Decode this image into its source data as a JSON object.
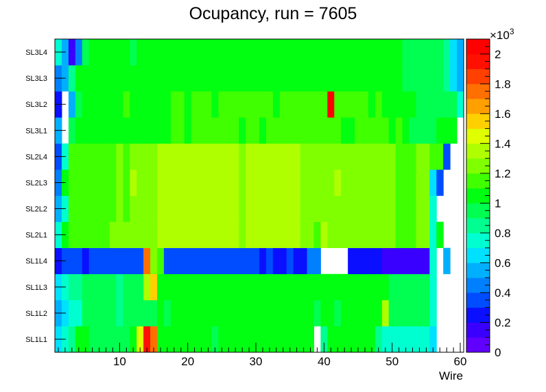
{
  "chart_data": {
    "type": "heatmap",
    "title": "Ocupancy, run = 7605",
    "xlabel": "Wire",
    "ylabel": "",
    "xlim": [
      0.5,
      60.5
    ],
    "x_ticks": [
      10,
      20,
      30,
      40,
      50,
      60
    ],
    "x_tick_labels": [
      "10",
      "20",
      "30",
      "40",
      "50",
      "60"
    ],
    "rows_bottom_to_top": [
      "SL1L1",
      "SL1L2",
      "SL1L3",
      "SL1L4",
      "SL2L1",
      "SL2L2",
      "SL2L3",
      "SL2L4",
      "SL3L1",
      "SL3L2",
      "SL3L3",
      "SL3L4"
    ],
    "z_range": [
      0,
      2100
    ],
    "z_exponent_label": "×10",
    "z_exponent_power": "3",
    "colorbar_ticks": [
      0,
      200,
      400,
      600,
      800,
      1000,
      1200,
      1400,
      1600,
      1800,
      2000
    ],
    "colorbar_tick_labels": [
      "0",
      "0.2",
      "0.4",
      "0.6",
      "0.8",
      "1",
      "1.2",
      "1.4",
      "1.6",
      "1.8",
      "2"
    ],
    "palette": [
      "#6000ff",
      "#3a00ff",
      "#0a10ff",
      "#004cff",
      "#0080ff",
      "#00b0ff",
      "#00e0ff",
      "#00ffd0",
      "#00ff90",
      "#00ff50",
      "#00ff10",
      "#40ff00",
      "#80ff00",
      "#b0ff00",
      "#e0ff00",
      "#ffd000",
      "#ffa000",
      "#ff7000",
      "#ff4000",
      "#ff1000",
      "#ff0000"
    ],
    "values": [
      [
        620,
        740,
        800,
        1000,
        1000,
        900,
        900,
        900,
        900,
        900,
        900,
        1000,
        1400,
        1950,
        1700,
        1000,
        1000,
        1000,
        1000,
        1000,
        1000,
        1000,
        1000,
        900,
        1000,
        1000,
        1000,
        1000,
        1000,
        1000,
        1000,
        1000,
        1000,
        1000,
        1000,
        1000,
        1000,
        1000,
        0,
        800,
        1000,
        1000,
        1000,
        1000,
        1000,
        1000,
        1000,
        800,
        780,
        780,
        780,
        780,
        780,
        780,
        780,
        620,
        0,
        0,
        0,
        0
      ],
      [
        500,
        600,
        740,
        740,
        900,
        900,
        900,
        900,
        900,
        800,
        900,
        900,
        900,
        900,
        900,
        1000,
        900,
        1000,
        1000,
        1000,
        1000,
        1000,
        1000,
        1000,
        1000,
        1000,
        1000,
        1000,
        1000,
        1000,
        1000,
        1000,
        1000,
        1000,
        1000,
        1000,
        1000,
        1000,
        900,
        1000,
        1000,
        900,
        1000,
        1000,
        1000,
        1000,
        1000,
        1000,
        1300,
        900,
        900,
        900,
        900,
        900,
        900,
        700,
        0,
        0,
        0,
        0
      ],
      [
        600,
        740,
        800,
        800,
        900,
        900,
        900,
        900,
        900,
        800,
        900,
        900,
        900,
        1300,
        1500,
        1000,
        1000,
        1000,
        1000,
        1000,
        1000,
        1000,
        1000,
        1000,
        1000,
        1000,
        1000,
        1000,
        1000,
        1000,
        1000,
        1000,
        1000,
        1000,
        1000,
        1000,
        1000,
        1000,
        1000,
        1000,
        1000,
        1000,
        1000,
        1000,
        1000,
        1000,
        1000,
        1000,
        1000,
        900,
        900,
        900,
        900,
        900,
        900,
        750,
        0,
        0,
        0,
        0
      ],
      [
        200,
        330,
        330,
        330,
        270,
        330,
        330,
        330,
        330,
        330,
        330,
        330,
        360,
        1750,
        1200,
        1150,
        380,
        380,
        380,
        380,
        380,
        380,
        380,
        380,
        380,
        380,
        380,
        380,
        380,
        380,
        270,
        380,
        270,
        270,
        380,
        270,
        270,
        400,
        450,
        0,
        0,
        0,
        0,
        270,
        270,
        270,
        270,
        270,
        140,
        140,
        140,
        140,
        140,
        140,
        140,
        780,
        0,
        520,
        0,
        0
      ],
      [
        730,
        1000,
        1150,
        1150,
        1150,
        1150,
        1150,
        1150,
        1200,
        1200,
        1200,
        1200,
        1200,
        1200,
        1200,
        1300,
        1300,
        1300,
        1300,
        1350,
        1300,
        1300,
        1300,
        1300,
        1300,
        1300,
        1300,
        1200,
        1300,
        1300,
        1300,
        1300,
        1300,
        1300,
        1300,
        1300,
        1200,
        1200,
        1100,
        1300,
        1200,
        1200,
        1200,
        1200,
        1200,
        1200,
        1200,
        1200,
        1200,
        1200,
        1100,
        1100,
        1100,
        1200,
        1200,
        750,
        1000,
        0,
        0,
        0
      ],
      [
        500,
        730,
        1100,
        1150,
        1150,
        1150,
        1150,
        1150,
        1150,
        1200,
        1150,
        1200,
        1200,
        1200,
        1200,
        1300,
        1300,
        1300,
        1300,
        1300,
        1300,
        1300,
        1300,
        1300,
        1300,
        1300,
        1300,
        1200,
        1300,
        1300,
        1300,
        1300,
        1300,
        1300,
        1300,
        1300,
        1200,
        1200,
        1200,
        1200,
        1200,
        1200,
        1200,
        1200,
        1200,
        1200,
        1200,
        1200,
        1200,
        1200,
        1100,
        1100,
        1100,
        1200,
        1200,
        700,
        0,
        0,
        0,
        0
      ],
      [
        400,
        1050,
        1100,
        1150,
        1150,
        1150,
        1150,
        1150,
        1150,
        1200,
        1150,
        1300,
        1200,
        1200,
        1200,
        1300,
        1300,
        1300,
        1300,
        1300,
        1300,
        1300,
        1300,
        1300,
        1300,
        1300,
        1300,
        1200,
        1300,
        1300,
        1300,
        1300,
        1300,
        1300,
        1300,
        1300,
        1200,
        1200,
        1200,
        1200,
        1200,
        1300,
        1200,
        1200,
        1200,
        1200,
        1200,
        1200,
        1200,
        1200,
        1100,
        1100,
        1100,
        1200,
        1200,
        600,
        300,
        0,
        0,
        0
      ],
      [
        300,
        750,
        1100,
        1150,
        1150,
        1150,
        1150,
        1150,
        1150,
        1200,
        1150,
        1200,
        1200,
        1200,
        1200,
        1300,
        1300,
        1300,
        1300,
        1300,
        1300,
        1300,
        1300,
        1300,
        1300,
        1300,
        1300,
        1200,
        1300,
        1300,
        1300,
        1300,
        1300,
        1300,
        1300,
        1300,
        1200,
        1200,
        1200,
        1200,
        1200,
        1200,
        1200,
        1200,
        1200,
        1200,
        1200,
        1200,
        1200,
        1200,
        1100,
        1100,
        1100,
        1200,
        1200,
        1100,
        1100,
        300,
        0,
        0
      ],
      [
        500,
        0,
        950,
        1000,
        1000,
        1000,
        1000,
        1000,
        1000,
        1000,
        1000,
        1050,
        1050,
        1050,
        1050,
        1050,
        1050,
        1100,
        1100,
        1050,
        1100,
        1100,
        1100,
        1100,
        1100,
        1100,
        1100,
        1000,
        1100,
        1100,
        1000,
        1100,
        1100,
        1100,
        1100,
        1100,
        1100,
        1100,
        1100,
        1100,
        1100,
        1100,
        1000,
        1000,
        1100,
        1100,
        1100,
        1100,
        1100,
        1050,
        1100,
        1000,
        950,
        950,
        950,
        950,
        1000,
        1000,
        1000,
        0
      ],
      [
        200,
        0,
        500,
        900,
        1000,
        1000,
        1050,
        1050,
        1000,
        1000,
        1100,
        1000,
        1000,
        1050,
        1050,
        1050,
        1050,
        1100,
        1100,
        1050,
        1100,
        1100,
        1100,
        1000,
        1100,
        1100,
        1100,
        1100,
        1100,
        1100,
        1100,
        1100,
        1000,
        1100,
        1100,
        1100,
        1100,
        1100,
        1100,
        1100,
        2000,
        1100,
        1100,
        1100,
        1100,
        1100,
        1000,
        1100,
        1050,
        1050,
        1050,
        1000,
        1000,
        950,
        950,
        950,
        950,
        900,
        900,
        750
      ],
      [
        400,
        500,
        800,
        1000,
        1000,
        1000,
        1000,
        1000,
        1000,
        1000,
        1050,
        1000,
        1000,
        1000,
        1000,
        1050,
        1050,
        1050,
        1050,
        1050,
        1050,
        1050,
        1050,
        1050,
        1050,
        1050,
        1050,
        1050,
        1050,
        1050,
        1050,
        1050,
        1050,
        1050,
        1050,
        1050,
        1050,
        1050,
        1050,
        1050,
        1050,
        1050,
        1050,
        1050,
        1050,
        1050,
        1050,
        1000,
        1000,
        1000,
        1000,
        950,
        950,
        950,
        950,
        950,
        950,
        850,
        600,
        500
      ],
      [
        700,
        500,
        150,
        400,
        950,
        1000,
        1000,
        1000,
        1000,
        1000,
        1000,
        950,
        1000,
        1000,
        1000,
        1000,
        1000,
        1000,
        1000,
        1000,
        1000,
        1000,
        1000,
        1000,
        1000,
        1000,
        1000,
        1000,
        1000,
        1000,
        1000,
        1050,
        1050,
        1050,
        1050,
        1000,
        1000,
        1000,
        1000,
        1000,
        1000,
        1000,
        1000,
        1000,
        1000,
        1000,
        1000,
        1000,
        1000,
        1000,
        1000,
        950,
        900,
        950,
        950,
        950,
        900,
        800,
        600,
        500
      ]
    ]
  }
}
